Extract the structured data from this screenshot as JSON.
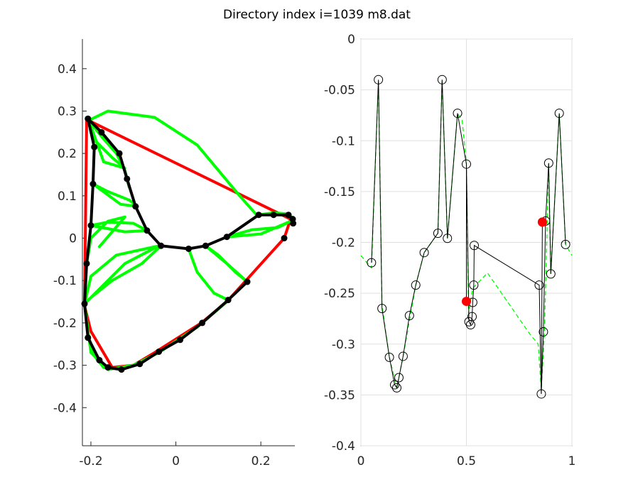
{
  "figure": {
    "title": "Directory index i=1039 m8.dat"
  },
  "chart_data": [
    {
      "type": "line",
      "panel": "left",
      "xlim": [
        -0.22,
        0.28
      ],
      "ylim": [
        -0.49,
        0.47
      ],
      "xticks": [
        -0.2,
        0,
        0.2
      ],
      "xtick_labels": [
        "-0.2",
        "0",
        "0.2"
      ],
      "yticks": [
        0.4,
        0.3,
        0.2,
        0.1,
        0,
        -0.1,
        -0.2,
        -0.3,
        -0.4
      ],
      "ytick_labels": [
        "0.4",
        "0.3",
        "0.2",
        "0.1",
        "0",
        "-0.1",
        "-0.2",
        "-0.3",
        "-0.4"
      ],
      "grid": false,
      "colors": {
        "outline": "#ff0000",
        "skeleton": "#000000",
        "curves": "#00ff00"
      },
      "red_outline": [
        [
          -0.21,
          0.28
        ],
        [
          0.27,
          0.045
        ],
        [
          0.255,
          0.0
        ],
        [
          0.12,
          -0.15
        ],
        [
          0.06,
          -0.2
        ],
        [
          -0.05,
          -0.27
        ],
        [
          -0.1,
          -0.3
        ],
        [
          -0.15,
          -0.305
        ],
        [
          -0.2,
          -0.22
        ],
        [
          -0.215,
          -0.16
        ],
        [
          -0.21,
          0.28
        ]
      ],
      "black_path": [
        [
          -0.207,
          0.282
        ],
        [
          -0.192,
          0.215
        ],
        [
          -0.195,
          0.128
        ],
        [
          -0.2,
          0.03
        ],
        [
          -0.21,
          -0.06
        ],
        [
          -0.215,
          -0.155
        ],
        [
          -0.207,
          -0.235
        ],
        [
          -0.18,
          -0.288
        ],
        [
          -0.16,
          -0.305
        ],
        [
          -0.128,
          -0.31
        ],
        [
          -0.085,
          -0.297
        ],
        [
          -0.04,
          -0.268
        ],
        [
          0.01,
          -0.24
        ],
        [
          0.062,
          -0.2
        ],
        [
          0.123,
          -0.146
        ],
        [
          0.168,
          -0.103
        ]
      ],
      "black_branch_left": [
        [
          -0.207,
          0.282
        ],
        [
          -0.175,
          0.25
        ],
        [
          -0.133,
          0.2
        ],
        [
          -0.115,
          0.14
        ],
        [
          -0.095,
          0.075
        ],
        [
          -0.068,
          0.018
        ],
        [
          -0.035,
          -0.018
        ]
      ],
      "black_branch_center": [
        [
          -0.035,
          -0.018
        ],
        [
          0.03,
          -0.025
        ],
        [
          0.07,
          -0.018
        ],
        [
          0.12,
          0.003
        ],
        [
          0.195,
          0.055
        ],
        [
          0.23,
          0.055
        ],
        [
          0.265,
          0.055
        ],
        [
          0.275,
          0.045
        ],
        [
          0.276,
          0.035
        ]
      ],
      "black_points": [
        [
          -0.207,
          0.282
        ],
        [
          -0.192,
          0.215
        ],
        [
          -0.195,
          0.128
        ],
        [
          -0.2,
          0.03
        ],
        [
          -0.21,
          -0.06
        ],
        [
          -0.215,
          -0.155
        ],
        [
          -0.207,
          -0.235
        ],
        [
          -0.18,
          -0.288
        ],
        [
          -0.16,
          -0.305
        ],
        [
          -0.128,
          -0.31
        ],
        [
          -0.085,
          -0.297
        ],
        [
          -0.04,
          -0.268
        ],
        [
          0.01,
          -0.24
        ],
        [
          0.062,
          -0.2
        ],
        [
          0.123,
          -0.146
        ],
        [
          0.168,
          -0.103
        ],
        [
          -0.175,
          0.25
        ],
        [
          -0.133,
          0.2
        ],
        [
          -0.115,
          0.14
        ],
        [
          -0.095,
          0.075
        ],
        [
          -0.068,
          0.018
        ],
        [
          -0.035,
          -0.018
        ],
        [
          0.03,
          -0.025
        ],
        [
          0.07,
          -0.018
        ],
        [
          0.12,
          0.003
        ],
        [
          0.195,
          0.055
        ],
        [
          0.23,
          0.055
        ],
        [
          0.265,
          0.055
        ],
        [
          0.275,
          0.045
        ],
        [
          0.276,
          0.035
        ],
        [
          0.255,
          0.0
        ]
      ],
      "green_curves": [
        [
          [
            -0.205,
            0.278
          ],
          [
            -0.16,
            0.3
          ],
          [
            -0.05,
            0.285
          ],
          [
            0.05,
            0.22
          ],
          [
            0.15,
            0.1
          ],
          [
            0.19,
            0.055
          ]
        ],
        [
          [
            -0.205,
            0.278
          ],
          [
            -0.175,
            0.24
          ],
          [
            -0.14,
            0.2
          ],
          [
            -0.12,
            0.16
          ],
          [
            -0.11,
            0.12
          ]
        ],
        [
          [
            -0.205,
            0.278
          ],
          [
            -0.19,
            0.23
          ],
          [
            -0.15,
            0.19
          ],
          [
            -0.12,
            0.165
          ],
          [
            -0.17,
            0.18
          ],
          [
            -0.205,
            0.278
          ]
        ],
        [
          [
            -0.195,
            0.128
          ],
          [
            -0.16,
            0.11
          ],
          [
            -0.11,
            0.09
          ],
          [
            -0.09,
            0.075
          ],
          [
            -0.13,
            0.08
          ],
          [
            -0.195,
            0.128
          ]
        ],
        [
          [
            -0.2,
            0.03
          ],
          [
            -0.16,
            0.038
          ],
          [
            -0.1,
            0.035
          ],
          [
            -0.068,
            0.018
          ],
          [
            -0.12,
            0.015
          ],
          [
            -0.2,
            0.03
          ]
        ],
        [
          [
            -0.21,
            -0.06
          ],
          [
            -0.2,
            -0.0
          ],
          [
            -0.16,
            0.04
          ],
          [
            -0.12,
            0.05
          ],
          [
            -0.18,
            -0.02
          ]
        ],
        [
          [
            -0.215,
            -0.155
          ],
          [
            -0.2,
            -0.09
          ],
          [
            -0.14,
            -0.04
          ],
          [
            -0.04,
            -0.018
          ],
          [
            -0.12,
            -0.06
          ],
          [
            -0.215,
            -0.155
          ]
        ],
        [
          [
            -0.035,
            -0.018
          ],
          [
            -0.08,
            -0.06
          ],
          [
            -0.15,
            -0.1
          ],
          [
            -0.2,
            -0.14
          ]
        ],
        [
          [
            0.07,
            -0.018
          ],
          [
            0.12,
            -0.06
          ],
          [
            0.168,
            -0.103
          ],
          [
            0.14,
            -0.08
          ],
          [
            0.1,
            -0.04
          ],
          [
            0.07,
            -0.018
          ]
        ],
        [
          [
            0.03,
            -0.025
          ],
          [
            0.05,
            -0.08
          ],
          [
            0.09,
            -0.13
          ],
          [
            0.123,
            -0.146
          ]
        ],
        [
          [
            0.12,
            0.003
          ],
          [
            0.18,
            0.02
          ],
          [
            0.24,
            0.025
          ],
          [
            0.27,
            0.04
          ],
          [
            0.2,
            0.01
          ],
          [
            0.12,
            0.003
          ]
        ],
        [
          [
            0.195,
            0.055
          ],
          [
            0.23,
            0.06
          ],
          [
            0.265,
            0.057
          ],
          [
            0.276,
            0.045
          ]
        ],
        [
          [
            -0.215,
            -0.155
          ],
          [
            -0.2,
            -0.27
          ],
          [
            -0.16,
            -0.31
          ],
          [
            -0.1,
            -0.3
          ],
          [
            -0.04,
            -0.27
          ],
          [
            0.05,
            -0.21
          ],
          [
            0.12,
            -0.15
          ]
        ],
        [
          [
            -0.205,
            -0.235
          ],
          [
            -0.19,
            -0.28
          ],
          [
            -0.17,
            -0.305
          ],
          [
            -0.128,
            -0.31
          ]
        ]
      ]
    },
    {
      "type": "line",
      "panel": "right",
      "xlim": [
        0,
        1
      ],
      "ylim": [
        -0.4,
        0
      ],
      "xticks": [
        0,
        0.5,
        1
      ],
      "xtick_labels": [
        "0",
        "0.5",
        "1"
      ],
      "yticks": [
        0,
        -0.05,
        -0.1,
        -0.15,
        -0.2,
        -0.25,
        -0.3,
        -0.35,
        -0.4
      ],
      "ytick_labels": [
        "0",
        "-0.05",
        "-0.1",
        "-0.15",
        "-0.2",
        "-0.25",
        "-0.3",
        "-0.35",
        "-0.4"
      ],
      "grid": true,
      "colors": {
        "data": "#000000",
        "fit": "#00ff00",
        "highlight": "#ff0000"
      },
      "series": [
        {
          "style": "black-line-circle-markers",
          "x": [
            0.05,
            0.083,
            0.1,
            0.135,
            0.16,
            0.17,
            0.18,
            0.2,
            0.23,
            0.26,
            0.3,
            0.365,
            0.385,
            0.41,
            0.458,
            0.5,
            0.512,
            0.52,
            0.527,
            0.53,
            0.535,
            0.537,
            0.845,
            0.855,
            0.865,
            0.875,
            0.89,
            0.9,
            0.94,
            0.97
          ],
          "y": [
            -0.22,
            -0.04,
            -0.265,
            -0.313,
            -0.34,
            -0.343,
            -0.333,
            -0.312,
            -0.272,
            -0.242,
            -0.21,
            -0.191,
            -0.04,
            -0.196,
            -0.073,
            -0.123,
            -0.278,
            -0.281,
            -0.273,
            -0.259,
            -0.242,
            -0.203,
            -0.242,
            -0.349,
            -0.288,
            -0.179,
            -0.122,
            -0.231,
            -0.073,
            -0.202
          ]
        },
        {
          "style": "green-dashed-fit",
          "x": [
            0.0,
            0.05,
            0.083,
            0.1,
            0.135,
            0.17,
            0.2,
            0.26,
            0.3,
            0.365,
            0.385,
            0.41,
            0.458,
            0.48,
            0.5,
            0.51,
            0.53,
            0.6,
            0.7,
            0.8,
            0.84,
            0.855,
            0.87,
            0.89,
            0.9,
            0.94,
            0.97,
            1.0
          ],
          "y": [
            -0.213,
            -0.225,
            -0.04,
            -0.262,
            -0.313,
            -0.343,
            -0.312,
            -0.242,
            -0.21,
            -0.191,
            -0.04,
            -0.196,
            -0.073,
            -0.08,
            -0.123,
            -0.27,
            -0.245,
            -0.23,
            -0.26,
            -0.29,
            -0.3,
            -0.345,
            -0.288,
            -0.122,
            -0.231,
            -0.073,
            -0.202,
            -0.213
          ]
        },
        {
          "style": "red-filled-markers",
          "x": [
            0.5,
            0.86
          ],
          "y": [
            -0.258,
            -0.18
          ]
        }
      ]
    }
  ]
}
